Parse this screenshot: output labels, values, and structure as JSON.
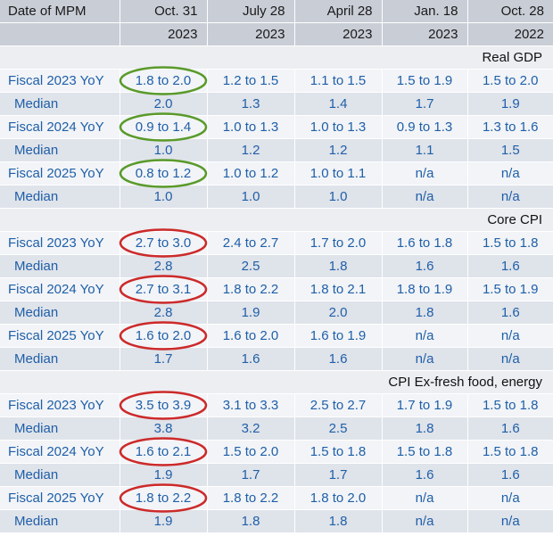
{
  "header": {
    "col_label": "Date of MPM",
    "dates": [
      {
        "top": "Oct. 31",
        "year": "2023"
      },
      {
        "top": "July 28",
        "year": "2023"
      },
      {
        "top": "April 28",
        "year": "2023"
      },
      {
        "top": "Jan. 18",
        "year": "2023"
      },
      {
        "top": "Oct. 28",
        "year": "2022"
      }
    ]
  },
  "sections": [
    {
      "title": "Real GDP",
      "highlight_color": "#5a9a2a",
      "rows": [
        {
          "label": "Fiscal 2023 YoY",
          "values": [
            "1.8 to 2.0",
            "1.2 to 1.5",
            "1.1 to 1.5",
            "1.5 to 1.9",
            "1.5 to 2.0"
          ]
        },
        {
          "label": "Median",
          "values": [
            "2.0",
            "1.3",
            "1.4",
            "1.7",
            "1.9"
          ]
        },
        {
          "label": "Fiscal 2024 YoY",
          "values": [
            "0.9 to 1.4",
            "1.0 to 1.3",
            "1.0 to 1.3",
            "0.9 to 1.3",
            "1.3 to 1.6"
          ]
        },
        {
          "label": "Median",
          "values": [
            "1.0",
            "1.2",
            "1.2",
            "1.1",
            "1.5"
          ]
        },
        {
          "label": "Fiscal 2025 YoY",
          "values": [
            "0.8 to 1.2",
            "1.0 to 1.2",
            "1.0 to 1.1",
            "n/a",
            "n/a"
          ]
        },
        {
          "label": "Median",
          "values": [
            "1.0",
            "1.0",
            "1.0",
            "n/a",
            "n/a"
          ]
        }
      ]
    },
    {
      "title": "Core CPI",
      "highlight_color": "#cc2a2a",
      "rows": [
        {
          "label": "Fiscal 2023 YoY",
          "values": [
            "2.7 to 3.0",
            "2.4 to 2.7",
            "1.7 to 2.0",
            "1.6 to 1.8",
            "1.5 to 1.8"
          ]
        },
        {
          "label": "Median",
          "values": [
            "2.8",
            "2.5",
            "1.8",
            "1.6",
            "1.6"
          ]
        },
        {
          "label": "Fiscal 2024 YoY",
          "values": [
            "2.7 to 3.1",
            "1.8 to 2.2",
            "1.8 to 2.1",
            "1.8 to 1.9",
            "1.5 to 1.9"
          ]
        },
        {
          "label": "Median",
          "values": [
            "2.8",
            "1.9",
            "2.0",
            "1.8",
            "1.6"
          ]
        },
        {
          "label": "Fiscal 2025 YoY",
          "values": [
            "1.6 to 2.0",
            "1.6 to 2.0",
            "1.6 to 1.9",
            "n/a",
            "n/a"
          ]
        },
        {
          "label": "Median",
          "values": [
            "1.7",
            "1.6",
            "1.6",
            "n/a",
            "n/a"
          ]
        }
      ]
    },
    {
      "title": "CPI Ex-fresh food, energy",
      "highlight_color": "#cc2a2a",
      "rows": [
        {
          "label": "Fiscal 2023 YoY",
          "values": [
            "3.5 to 3.9",
            "3.1 to 3.3",
            "2.5 to 2.7",
            "1.7 to 1.9",
            "1.5 to 1.8"
          ]
        },
        {
          "label": "Median",
          "values": [
            "3.8",
            "3.2",
            "2.5",
            "1.8",
            "1.6"
          ]
        },
        {
          "label": "Fiscal 2024 YoY",
          "values": [
            "1.6 to 2.1",
            "1.5 to 2.0",
            "1.5 to 1.8",
            "1.5 to 1.8",
            "1.5 to 1.8"
          ]
        },
        {
          "label": "Median",
          "values": [
            "1.9",
            "1.7",
            "1.7",
            "1.6",
            "1.6"
          ]
        },
        {
          "label": "Fiscal 2025 YoY",
          "values": [
            "1.8 to 2.2",
            "1.8 to 2.2",
            "1.8 to 2.0",
            "n/a",
            "n/a"
          ]
        },
        {
          "label": "Median",
          "values": [
            "1.9",
            "1.8",
            "1.8",
            "n/a",
            "n/a"
          ]
        }
      ]
    }
  ]
}
